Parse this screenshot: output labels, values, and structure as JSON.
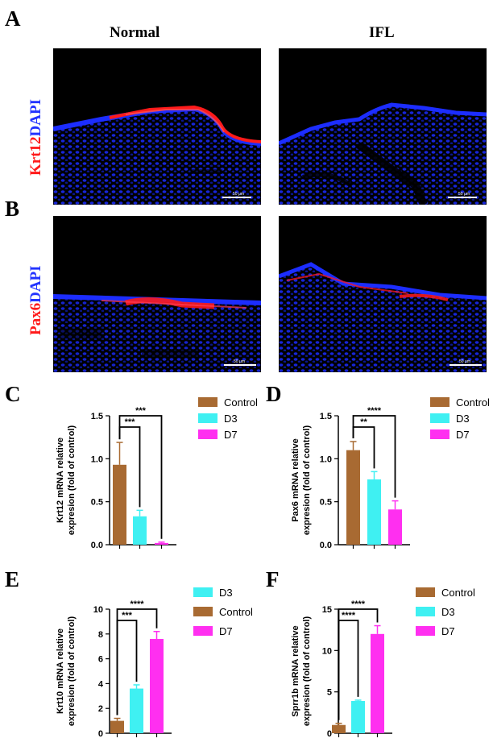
{
  "figure": {
    "letters": [
      "A",
      "B",
      "C",
      "D",
      "E",
      "F"
    ],
    "col_titles": [
      "Normal",
      "IFL"
    ],
    "row_labels": [
      {
        "stain": "Krt12",
        "counter": "DAPI"
      },
      {
        "stain": "Pax6",
        "counter": "DAPI"
      }
    ],
    "scale_bar": "50 μm",
    "colors": {
      "stain": "#ff1a1a",
      "dapi": "#2233ff",
      "control": "#a86a32",
      "d3": "#3ff0f2",
      "d7": "#ff2ff0"
    }
  },
  "chart_data": [
    {
      "panel": "C",
      "type": "bar",
      "ylabel": "Krt12 mRNA relative expresion  (fold of control)",
      "ylim": [
        0,
        1.5
      ],
      "yticks": [
        0.0,
        0.5,
        1.0,
        1.5
      ],
      "ytick_labels": [
        "0.0",
        "0.5",
        "1.0",
        "1.5"
      ],
      "legend": [
        "Control",
        "D3",
        "D7"
      ],
      "bars": [
        {
          "name": "Control",
          "value": 0.93,
          "error": 0.26,
          "color": "#a86a32"
        },
        {
          "name": "D3",
          "value": 0.33,
          "error": 0.07,
          "color": "#3ff0f2"
        },
        {
          "name": "D7",
          "value": 0.02,
          "error": 0.01,
          "color": "#ff2ff0"
        }
      ],
      "significance": [
        {
          "from": 0,
          "to": 1,
          "label": "***"
        },
        {
          "from": 0,
          "to": 2,
          "label": "***"
        }
      ]
    },
    {
      "panel": "D",
      "type": "bar",
      "ylabel": "Pax6 mRNA relative expresion  (fold of control)",
      "ylim": [
        0,
        1.5
      ],
      "yticks": [
        0.0,
        0.5,
        1.0,
        1.5
      ],
      "ytick_labels": [
        "0.0",
        "0.5",
        "1.0",
        "1.5"
      ],
      "legend": [
        "Control",
        "D3",
        "D7"
      ],
      "bars": [
        {
          "name": "Control",
          "value": 1.1,
          "error": 0.1,
          "color": "#a86a32"
        },
        {
          "name": "D3",
          "value": 0.76,
          "error": 0.09,
          "color": "#3ff0f2"
        },
        {
          "name": "D7",
          "value": 0.41,
          "error": 0.1,
          "color": "#ff2ff0"
        }
      ],
      "significance": [
        {
          "from": 0,
          "to": 1,
          "label": "**"
        },
        {
          "from": 0,
          "to": 2,
          "label": "****"
        }
      ]
    },
    {
      "panel": "E",
      "type": "bar",
      "ylabel": "Krt10 mRNA relative expresion  (fold of control)",
      "ylim": [
        0,
        10
      ],
      "yticks": [
        0,
        2,
        4,
        6,
        8,
        10
      ],
      "ytick_labels": [
        "0",
        "2",
        "4",
        "6",
        "8",
        "10"
      ],
      "legend": [
        "D3",
        "Control",
        "D7"
      ],
      "bars": [
        {
          "name": "Control",
          "value": 1.0,
          "error": 0.2,
          "color": "#a86a32"
        },
        {
          "name": "D3",
          "value": 3.6,
          "error": 0.3,
          "color": "#3ff0f2"
        },
        {
          "name": "D7",
          "value": 7.6,
          "error": 0.6,
          "color": "#ff2ff0"
        }
      ],
      "significance": [
        {
          "from": 0,
          "to": 1,
          "label": "***"
        },
        {
          "from": 0,
          "to": 2,
          "label": "****"
        }
      ]
    },
    {
      "panel": "F",
      "type": "bar",
      "ylabel": "Sprr1b mRNA relative expresion  (fold of control)",
      "ylim": [
        0,
        15
      ],
      "yticks": [
        0,
        5,
        10,
        15
      ],
      "ytick_labels": [
        "0",
        "5",
        "10",
        "15"
      ],
      "legend": [
        "Control",
        "D3",
        "D7"
      ],
      "bars": [
        {
          "name": "Control",
          "value": 1.0,
          "error": 0.2,
          "color": "#a86a32"
        },
        {
          "name": "D3",
          "value": 3.9,
          "error": 0.1,
          "color": "#3ff0f2"
        },
        {
          "name": "D7",
          "value": 12.0,
          "error": 1.0,
          "color": "#ff2ff0"
        }
      ],
      "significance": [
        {
          "from": 0,
          "to": 1,
          "label": "****"
        },
        {
          "from": 0,
          "to": 2,
          "label": "****"
        }
      ]
    }
  ]
}
